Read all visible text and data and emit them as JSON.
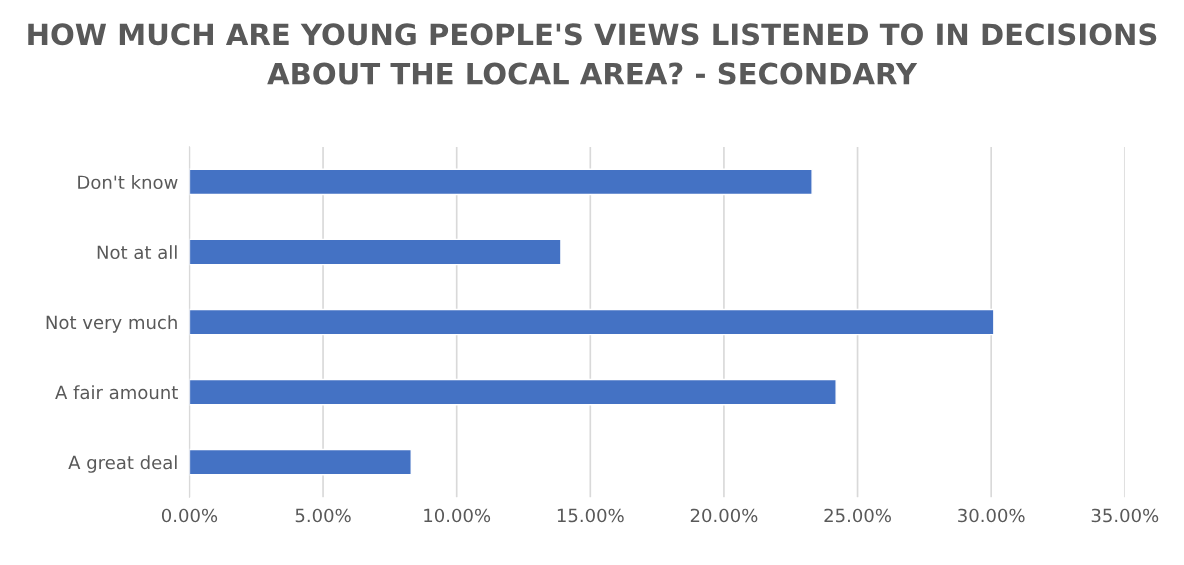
{
  "chart_data": {
    "type": "bar",
    "orientation": "horizontal",
    "title": "HOW MUCH ARE YOUNG PEOPLE'S VIEWS LISTENED TO IN DECISIONS ABOUT THE LOCAL AREA? - SECONDARY",
    "categories": [
      "Don't know",
      "Not at all",
      "Not very much",
      "A fair amount",
      "A great deal"
    ],
    "values": [
      23.3,
      13.9,
      30.1,
      24.2,
      8.3
    ],
    "color": "#4472c4",
    "xlim": [
      0,
      35
    ],
    "xticks": [
      {
        "value": 0,
        "label": "0.00%"
      },
      {
        "value": 5,
        "label": "5.00%"
      },
      {
        "value": 10,
        "label": "10.00%"
      },
      {
        "value": 15,
        "label": "15.00%"
      },
      {
        "value": 20,
        "label": "20.00%"
      },
      {
        "value": 25,
        "label": "25.00%"
      },
      {
        "value": 30,
        "label": "30.00%"
      },
      {
        "value": 35,
        "label": "35.00%"
      }
    ],
    "grid": "x",
    "legend": false
  }
}
